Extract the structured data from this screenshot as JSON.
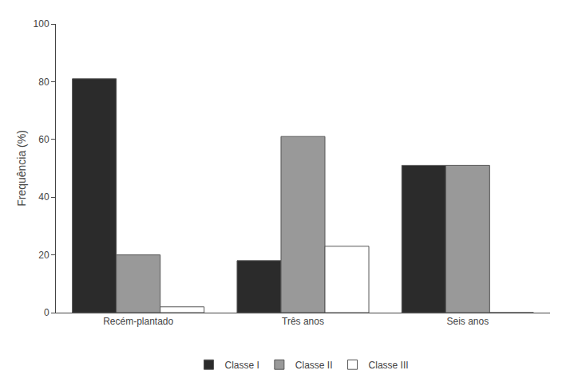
{
  "chart_data": {
    "type": "bar",
    "categories": [
      "Recém-plantado",
      "Três anos",
      "Seis anos"
    ],
    "series": [
      {
        "name": "Classe I",
        "color": "#2b2b2b",
        "values": [
          81,
          18,
          51
        ]
      },
      {
        "name": "Classe II",
        "color": "#999999",
        "values": [
          20,
          61,
          51
        ]
      },
      {
        "name": "Classe III",
        "color": "#ffffff",
        "values": [
          2,
          23,
          0
        ]
      }
    ],
    "ylabel": "Frequência (%)",
    "ylim": [
      0,
      100
    ],
    "yticks": [
      0,
      20,
      40,
      60,
      80,
      100
    ],
    "grid": false,
    "legend": "bottom"
  }
}
